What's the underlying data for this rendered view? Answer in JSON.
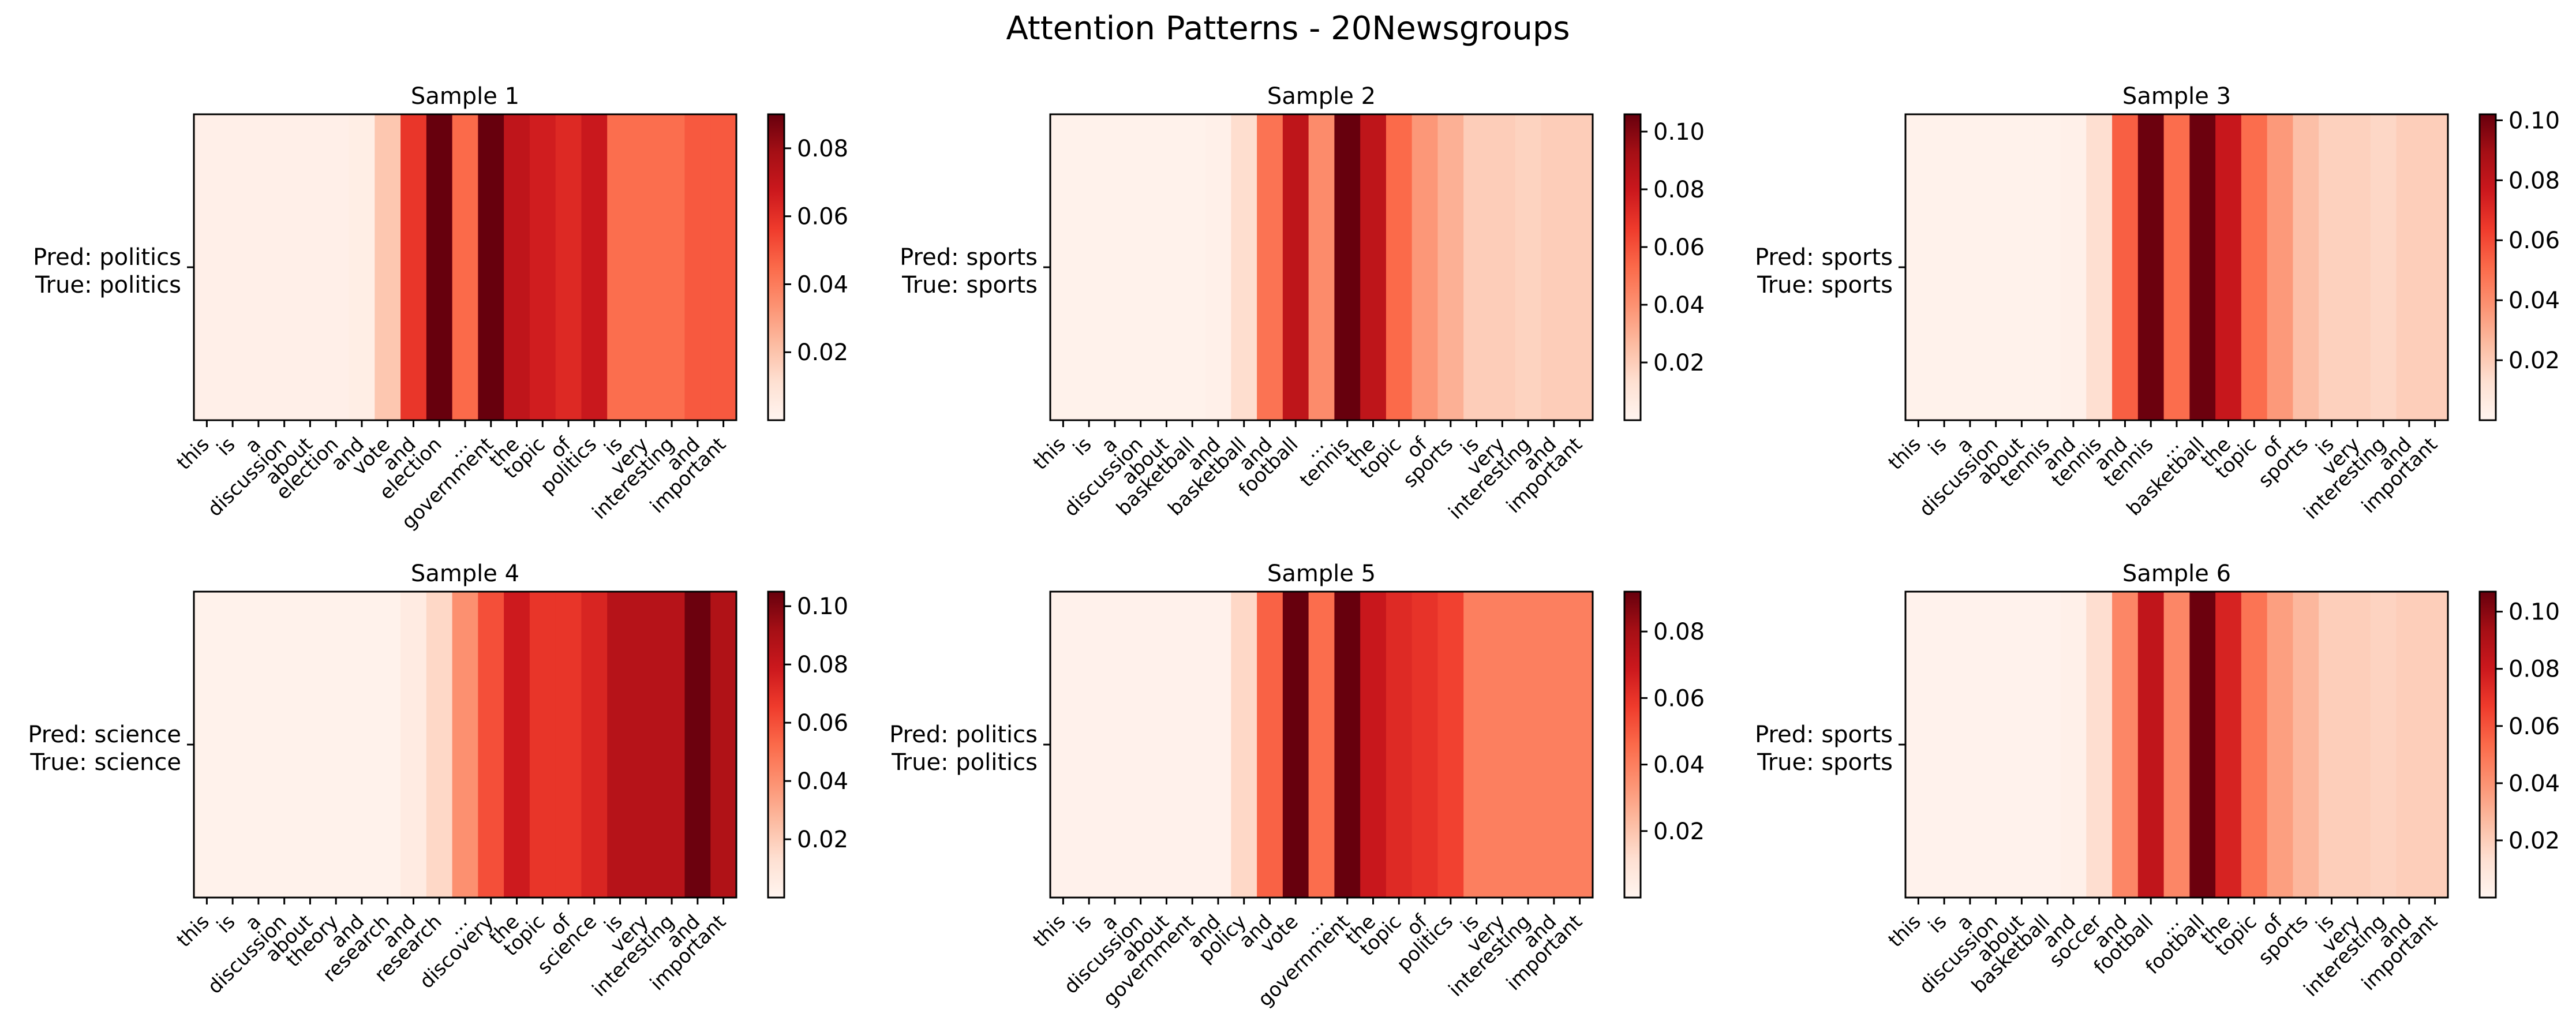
{
  "figure": {
    "title": "Attention Patterns - 20Newsgroups",
    "colormap": "Reds",
    "colormap_stops": [
      "#fff5f0",
      "#fee0d2",
      "#fcbba1",
      "#fc9272",
      "#fb6a4a",
      "#ef3b2c",
      "#cb181d",
      "#a50f15",
      "#67000d"
    ],
    "axes_color": "#000000"
  },
  "chart_data": [
    {
      "type": "heatmap",
      "title": "Sample 1",
      "ylabel_lines": [
        "Pred: politics",
        "True: politics"
      ],
      "tokens": [
        "this",
        "is",
        "a",
        "discussion",
        "about",
        "election",
        "and",
        "vote",
        "and",
        "election",
        "...",
        "government",
        "the",
        "topic",
        "of",
        "politics",
        "is",
        "very",
        "interesting",
        "and",
        "important"
      ],
      "values": [
        0.003,
        0.003,
        0.003,
        0.003,
        0.003,
        0.003,
        0.004,
        0.019,
        0.058,
        0.09,
        0.045,
        0.09,
        0.071,
        0.066,
        0.062,
        0.068,
        0.044,
        0.044,
        0.044,
        0.049,
        0.049
      ],
      "colorbar": {
        "vmin": 0.0,
        "vmax": 0.09,
        "ticks": [
          0.02,
          0.04,
          0.06,
          0.08
        ],
        "tick_labels": [
          "0.02",
          "0.04",
          "0.06",
          "0.08"
        ]
      }
    },
    {
      "type": "heatmap",
      "title": "Sample 2",
      "ylabel_lines": [
        "Pred: sports",
        "True: sports"
      ],
      "tokens": [
        "this",
        "is",
        "a",
        "discussion",
        "about",
        "basketball",
        "and",
        "basketball",
        "and",
        "football",
        "...",
        "tennis",
        "the",
        "topic",
        "of",
        "sports",
        "is",
        "very",
        "interesting",
        "and",
        "important"
      ],
      "values": [
        0.002,
        0.002,
        0.002,
        0.002,
        0.002,
        0.002,
        0.003,
        0.014,
        0.05,
        0.084,
        0.042,
        0.106,
        0.084,
        0.053,
        0.038,
        0.03,
        0.02,
        0.02,
        0.018,
        0.02,
        0.02
      ],
      "colorbar": {
        "vmin": 0.0,
        "vmax": 0.106,
        "ticks": [
          0.02,
          0.04,
          0.06,
          0.08,
          0.1
        ],
        "tick_labels": [
          "0.02",
          "0.04",
          "0.06",
          "0.08",
          "0.10"
        ]
      }
    },
    {
      "type": "heatmap",
      "title": "Sample 3",
      "ylabel_lines": [
        "Pred: sports",
        "True: sports"
      ],
      "tokens": [
        "this",
        "is",
        "a",
        "discussion",
        "about",
        "tennis",
        "and",
        "tennis",
        "and",
        "tennis",
        "...",
        "basketball",
        "the",
        "topic",
        "of",
        "sports",
        "is",
        "very",
        "interesting",
        "and",
        "important"
      ],
      "values": [
        0.002,
        0.002,
        0.002,
        0.002,
        0.002,
        0.002,
        0.003,
        0.013,
        0.054,
        0.101,
        0.05,
        0.101,
        0.078,
        0.05,
        0.036,
        0.024,
        0.018,
        0.018,
        0.016,
        0.019,
        0.019
      ],
      "colorbar": {
        "vmin": 0.0,
        "vmax": 0.102,
        "ticks": [
          0.02,
          0.04,
          0.06,
          0.08,
          0.1
        ],
        "tick_labels": [
          "0.02",
          "0.04",
          "0.06",
          "0.08",
          "0.10"
        ]
      }
    },
    {
      "type": "heatmap",
      "title": "Sample 4",
      "ylabel_lines": [
        "Pred: science",
        "True: science"
      ],
      "tokens": [
        "this",
        "is",
        "a",
        "discussion",
        "about",
        "theory",
        "and",
        "research",
        "and",
        "research",
        "...",
        "discovery",
        "the",
        "topic",
        "of",
        "science",
        "is",
        "very",
        "interesting",
        "and",
        "important"
      ],
      "values": [
        0.002,
        0.002,
        0.002,
        0.002,
        0.002,
        0.002,
        0.002,
        0.002,
        0.006,
        0.016,
        0.04,
        0.06,
        0.078,
        0.068,
        0.068,
        0.074,
        0.086,
        0.086,
        0.086,
        0.104,
        0.088
      ],
      "colorbar": {
        "vmin": 0.0,
        "vmax": 0.105,
        "ticks": [
          0.02,
          0.04,
          0.06,
          0.08,
          0.1
        ],
        "tick_labels": [
          "0.02",
          "0.04",
          "0.06",
          "0.08",
          "0.10"
        ]
      }
    },
    {
      "type": "heatmap",
      "title": "Sample 5",
      "ylabel_lines": [
        "Pred: politics",
        "True: politics"
      ],
      "tokens": [
        "this",
        "is",
        "a",
        "discussion",
        "about",
        "government",
        "and",
        "policy",
        "and",
        "vote",
        "...",
        "government",
        "the",
        "topic",
        "of",
        "politics",
        "is",
        "very",
        "interesting",
        "and",
        "important"
      ],
      "values": [
        0.002,
        0.002,
        0.002,
        0.002,
        0.002,
        0.002,
        0.002,
        0.014,
        0.048,
        0.092,
        0.045,
        0.092,
        0.07,
        0.063,
        0.06,
        0.056,
        0.04,
        0.04,
        0.04,
        0.04,
        0.04
      ],
      "colorbar": {
        "vmin": 0.0,
        "vmax": 0.092,
        "ticks": [
          0.02,
          0.04,
          0.06,
          0.08
        ],
        "tick_labels": [
          "0.02",
          "0.04",
          "0.06",
          "0.08"
        ]
      }
    },
    {
      "type": "heatmap",
      "title": "Sample 6",
      "ylabel_lines": [
        "Pred: sports",
        "True: sports"
      ],
      "tokens": [
        "this",
        "is",
        "a",
        "discussion",
        "about",
        "basketball",
        "and",
        "soccer",
        "and",
        "football",
        "...",
        "football",
        "the",
        "topic",
        "of",
        "sports",
        "is",
        "very",
        "interesting",
        "and",
        "important"
      ],
      "values": [
        0.002,
        0.002,
        0.002,
        0.002,
        0.002,
        0.002,
        0.003,
        0.014,
        0.044,
        0.084,
        0.044,
        0.106,
        0.076,
        0.05,
        0.036,
        0.028,
        0.02,
        0.02,
        0.018,
        0.02,
        0.02
      ],
      "colorbar": {
        "vmin": 0.0,
        "vmax": 0.107,
        "ticks": [
          0.02,
          0.04,
          0.06,
          0.08,
          0.1
        ],
        "tick_labels": [
          "0.02",
          "0.04",
          "0.06",
          "0.08",
          "0.10"
        ]
      }
    }
  ]
}
